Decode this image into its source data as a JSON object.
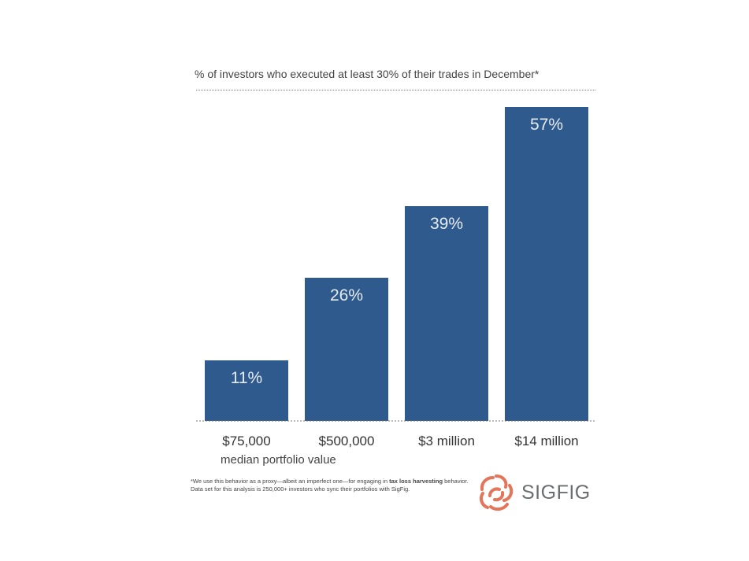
{
  "chart_data": {
    "type": "bar",
    "title": "% of investors who executed at least 30% of their trades in December*",
    "xlabel": "median portfolio value",
    "ylabel": "",
    "categories": [
      "$75,000",
      "$500,000",
      "$3 million",
      "$14 million"
    ],
    "values": [
      11,
      26,
      39,
      57
    ],
    "data_labels": [
      "11%",
      "26%",
      "39%",
      "57%"
    ],
    "ylim": [
      0,
      57
    ],
    "grid": false,
    "legend": "none",
    "bar_color": "#2e5a8e"
  },
  "footnote": {
    "line1_pre": "*We use this behavior as a proxy—albeit an imperfect one—for engaging in ",
    "line1_bold": "tax loss harvesting",
    "line1_post": " behavior.",
    "line2": "Data set for this analysis is 250,000+ investors who sync their portfolios with SigFig."
  },
  "logo": {
    "text": "SIGFIG",
    "color": "#e3755b"
  }
}
